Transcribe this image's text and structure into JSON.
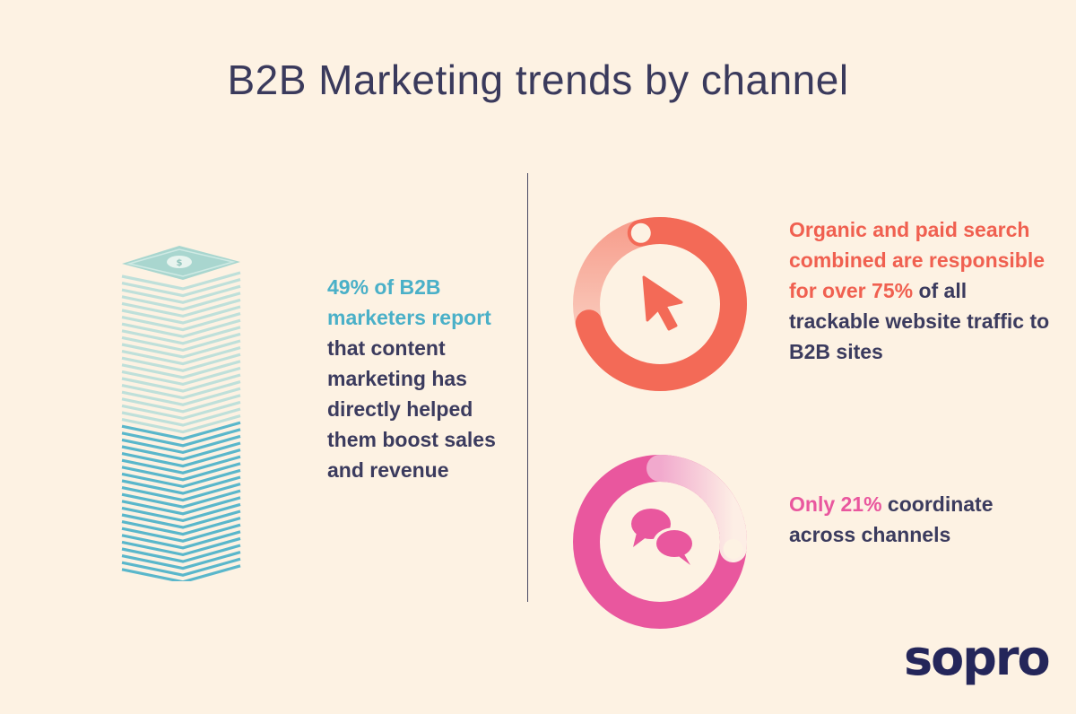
{
  "title": "B2B Marketing trends by channel",
  "stat_left": {
    "highlight": "49% of B2B marketers report",
    "rest": " that content marketing has directly helped them boost sales and revenue",
    "percent": 49
  },
  "stat_search": {
    "highlight_1": "Organic and paid search combined are responsible for over 75%",
    "rest": " of all trackable website traffic to B2B sites",
    "percent": 75
  },
  "stat_coordinate": {
    "highlight": "Only 21%",
    "rest": " coordinate across channels",
    "percent": 21
  },
  "icons": {
    "stack": "money-stack-icon",
    "cursor": "cursor-arrow-icon",
    "chat": "chat-bubbles-icon"
  },
  "logo": "sopro",
  "colors": {
    "background": "#fdf2e3",
    "title": "#3a3a5c",
    "teal": "#4ab0c8",
    "coral": "#f06050",
    "pink": "#e9579e",
    "dark_text": "#3b3b5e",
    "logo": "#24265a"
  }
}
